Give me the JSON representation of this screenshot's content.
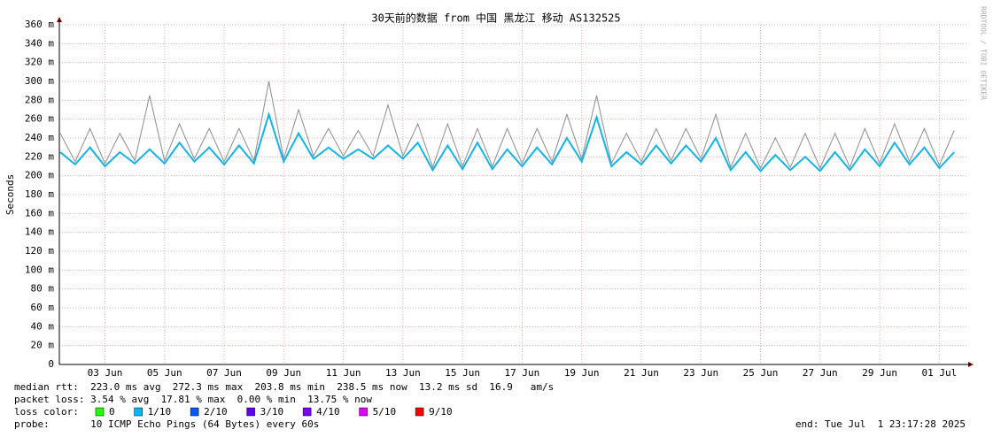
{
  "chart_data": {
    "type": "line",
    "title": "30天前的数据 from 中国 黑龙江 移动 AS132525",
    "y_label": "Seconds",
    "side_text": "RRDTOOL / TOBI OETIKER",
    "x": [
      "2025-06-01T12:00",
      "2025-06-02T00:00",
      "2025-06-02T12:00",
      "2025-06-03T00:00",
      "2025-06-03T12:00",
      "2025-06-04T00:00",
      "2025-06-04T12:00",
      "2025-06-05T00:00",
      "2025-06-05T12:00",
      "2025-06-06T00:00",
      "2025-06-06T12:00",
      "2025-06-07T00:00",
      "2025-06-07T12:00",
      "2025-06-08T00:00",
      "2025-06-08T12:00",
      "2025-06-09T00:00",
      "2025-06-09T12:00",
      "2025-06-10T00:00",
      "2025-06-10T12:00",
      "2025-06-11T00:00",
      "2025-06-11T12:00",
      "2025-06-12T00:00",
      "2025-06-12T12:00",
      "2025-06-13T00:00",
      "2025-06-13T12:00",
      "2025-06-14T00:00",
      "2025-06-14T12:00",
      "2025-06-15T00:00",
      "2025-06-15T12:00",
      "2025-06-16T00:00",
      "2025-06-16T12:00",
      "2025-06-17T00:00",
      "2025-06-17T12:00",
      "2025-06-18T00:00",
      "2025-06-18T12:00",
      "2025-06-19T00:00",
      "2025-06-19T12:00",
      "2025-06-20T00:00",
      "2025-06-20T12:00",
      "2025-06-21T00:00",
      "2025-06-21T12:00",
      "2025-06-22T00:00",
      "2025-06-22T12:00",
      "2025-06-23T00:00",
      "2025-06-23T12:00",
      "2025-06-24T00:00",
      "2025-06-24T12:00",
      "2025-06-25T00:00",
      "2025-06-25T12:00",
      "2025-06-26T00:00",
      "2025-06-26T12:00",
      "2025-06-27T00:00",
      "2025-06-27T12:00",
      "2025-06-28T00:00",
      "2025-06-28T12:00",
      "2025-06-29T00:00",
      "2025-06-29T12:00",
      "2025-06-30T00:00",
      "2025-06-30T12:00",
      "2025-07-01T00:00",
      "2025-07-01T12:00"
    ],
    "series": [
      {
        "name": "max",
        "color": "#8c8c8c",
        "values": [
          245,
          215,
          250,
          213,
          245,
          216,
          285,
          216,
          255,
          218,
          250,
          215,
          250,
          216,
          300,
          218,
          270,
          221,
          250,
          221,
          248,
          221,
          275,
          221,
          255,
          209,
          255,
          210,
          250,
          210,
          250,
          213,
          250,
          215,
          265,
          218,
          285,
          213,
          245,
          215,
          250,
          216,
          250,
          218,
          265,
          209,
          245,
          208,
          240,
          209,
          245,
          208,
          245,
          209,
          250,
          213,
          255,
          215,
          250,
          211,
          248
        ]
      },
      {
        "name": "median",
        "color": "#12b4e8",
        "values": [
          225,
          212,
          230,
          210,
          225,
          213,
          228,
          213,
          235,
          215,
          230,
          212,
          232,
          213,
          265,
          215,
          245,
          218,
          230,
          218,
          228,
          218,
          232,
          218,
          235,
          206,
          232,
          207,
          235,
          207,
          228,
          210,
          230,
          212,
          240,
          215,
          262,
          210,
          225,
          212,
          232,
          213,
          232,
          215,
          240,
          206,
          225,
          205,
          222,
          206,
          220,
          205,
          225,
          206,
          228,
          210,
          235,
          212,
          230,
          208,
          225
        ]
      }
    ],
    "xlim": [
      "2025-06-01T11:17",
      "2025-07-01T23:17"
    ],
    "xticks": [
      {
        "value": "2025-06-03T00:00",
        "label": "03 Jun"
      },
      {
        "value": "2025-06-05T00:00",
        "label": "05 Jun"
      },
      {
        "value": "2025-06-07T00:00",
        "label": "07 Jun"
      },
      {
        "value": "2025-06-09T00:00",
        "label": "09 Jun"
      },
      {
        "value": "2025-06-11T00:00",
        "label": "11 Jun"
      },
      {
        "value": "2025-06-13T00:00",
        "label": "13 Jun"
      },
      {
        "value": "2025-06-15T00:00",
        "label": "15 Jun"
      },
      {
        "value": "2025-06-17T00:00",
        "label": "17 Jun"
      },
      {
        "value": "2025-06-19T00:00",
        "label": "19 Jun"
      },
      {
        "value": "2025-06-21T00:00",
        "label": "21 Jun"
      },
      {
        "value": "2025-06-23T00:00",
        "label": "23 Jun"
      },
      {
        "value": "2025-06-25T00:00",
        "label": "25 Jun"
      },
      {
        "value": "2025-06-27T00:00",
        "label": "27 Jun"
      },
      {
        "value": "2025-06-29T00:00",
        "label": "29 Jun"
      },
      {
        "value": "2025-07-01T00:00",
        "label": "01 Jul"
      }
    ],
    "ylim": [
      0,
      360
    ],
    "yticks": [
      0,
      {
        "value": 20,
        "label": "20 m"
      },
      {
        "value": 40,
        "label": "40 m"
      },
      {
        "value": 60,
        "label": "60 m"
      },
      {
        "value": 80,
        "label": "80 m"
      },
      {
        "value": 100,
        "label": "100 m"
      },
      {
        "value": 120,
        "label": "120 m"
      },
      {
        "value": 140,
        "label": "140 m"
      },
      {
        "value": 160,
        "label": "160 m"
      },
      {
        "value": 180,
        "label": "180 m"
      },
      {
        "value": 200,
        "label": "200 m"
      },
      {
        "value": 220,
        "label": "220 m"
      },
      {
        "value": 240,
        "label": "240 m"
      },
      {
        "value": 260,
        "label": "260 m"
      },
      {
        "value": 280,
        "label": "280 m"
      },
      {
        "value": 300,
        "label": "300 m"
      },
      {
        "value": 320,
        "label": "320 m"
      },
      {
        "value": 340,
        "label": "340 m"
      },
      {
        "value": 360,
        "label": "360 m"
      }
    ],
    "grid": true,
    "stats": [
      "median rtt:  223.0 ms avg  272.3 ms max  203.8 ms min  238.5 ms now  13.2 ms sd  16.9   am/s",
      "packet loss: 3.54 % avg  17.81 % max  0.00 % min  13.75 % now"
    ],
    "loss_label": "loss color:",
    "loss_colors": [
      {
        "label": "0",
        "color": "#26ff00"
      },
      {
        "label": "1/10",
        "color": "#00b8ff"
      },
      {
        "label": "2/10",
        "color": "#0059ff"
      },
      {
        "label": "3/10",
        "color": "#5e00ff"
      },
      {
        "label": "4/10",
        "color": "#7e00ff"
      },
      {
        "label": "5/10",
        "color": "#dd00ff"
      },
      {
        "label": "9/10",
        "color": "#ff0000"
      }
    ],
    "probe": "probe:       10 ICMP Echo Pings (64 Bytes) every 60s",
    "end": "end: Tue Jul  1 23:17:28 2025"
  }
}
